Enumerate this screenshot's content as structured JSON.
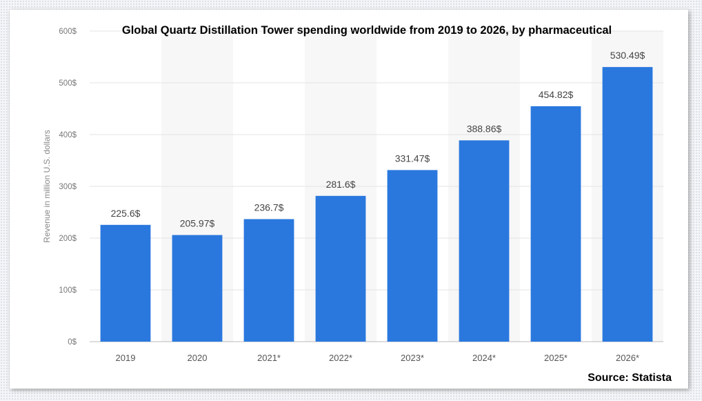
{
  "chart_data": {
    "type": "bar",
    "title": "Global Quartz Distillation Tower spending worldwide from 2019 to 2026, by pharmaceutical",
    "ylabel": "Revenue in million U.S. dollars",
    "xlabel": "",
    "categories": [
      "2019",
      "2020",
      "2021*",
      "2022*",
      "2023*",
      "2024*",
      "2025*",
      "2026*"
    ],
    "values": [
      225.6,
      205.97,
      236.7,
      281.6,
      331.47,
      388.86,
      454.82,
      530.49
    ],
    "data_labels": [
      "225.6$",
      "205.97$",
      "236.7$",
      "281.6$",
      "331.47$",
      "388.86$",
      "454.82$",
      "530.49$"
    ],
    "y_ticks": [
      "0$",
      "100$",
      "200$",
      "300$",
      "400$",
      "500$",
      "600$"
    ],
    "ylim": [
      0,
      600
    ],
    "grid": true,
    "bar_color": "#2a78de",
    "source": "Source: Statista"
  }
}
